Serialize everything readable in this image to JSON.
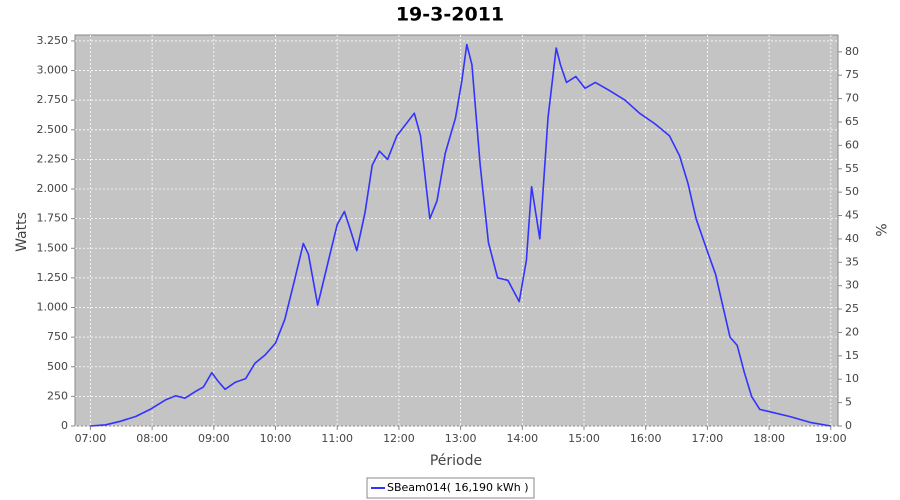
{
  "chart_data": {
    "type": "line",
    "title": "19-3-2011",
    "xlabel": "Période",
    "ylabel": "Watts",
    "y2label": "%",
    "x": [
      "07:00",
      "07:15",
      "07:29",
      "07:44",
      "07:58",
      "08:13",
      "08:23",
      "08:32",
      "08:42",
      "08:50",
      "08:58",
      "09:04",
      "09:11",
      "09:21",
      "09:31",
      "09:40",
      "09:50",
      "10:00",
      "10:09",
      "10:19",
      "10:27",
      "10:32",
      "10:41",
      "10:51",
      "11:00",
      "11:07",
      "11:13",
      "11:19",
      "11:27",
      "11:34",
      "11:41",
      "11:49",
      "11:58",
      "12:07",
      "12:15",
      "12:21",
      "12:30",
      "12:37",
      "12:45",
      "12:55",
      "13:01",
      "13:06",
      "13:11",
      "13:19",
      "13:27",
      "13:36",
      "13:46",
      "13:57",
      "14:04",
      "14:09",
      "14:17",
      "14:25",
      "14:33",
      "14:37",
      "14:43",
      "14:52",
      "15:01",
      "15:11",
      "15:25",
      "15:40",
      "15:54",
      "16:09",
      "16:23",
      "16:33",
      "16:41",
      "16:49",
      "17:01",
      "17:08",
      "17:14",
      "17:22",
      "17:29",
      "17:36",
      "17:43",
      "17:51",
      "18:01",
      "18:20",
      "18:40",
      "19:00"
    ],
    "series": [
      {
        "name": "SBeam014( 16,190 kWh )",
        "color": "#3333ff",
        "values": [
          0,
          10,
          40,
          80,
          140,
          220,
          255,
          235,
          290,
          330,
          450,
          380,
          310,
          370,
          400,
          530,
          600,
          700,
          900,
          1250,
          1540,
          1450,
          1020,
          1380,
          1700,
          1810,
          1650,
          1480,
          1800,
          2200,
          2320,
          2250,
          2450,
          2550,
          2640,
          2450,
          1750,
          1900,
          2300,
          2600,
          2900,
          3220,
          3050,
          2200,
          1550,
          1250,
          1230,
          1050,
          1400,
          2020,
          1580,
          2600,
          3190,
          3050,
          2900,
          2950,
          2850,
          2900,
          2830,
          2750,
          2640,
          2550,
          2450,
          2280,
          2050,
          1750,
          1450,
          1280,
          1050,
          750,
          680,
          450,
          250,
          140,
          120,
          80,
          30,
          0
        ]
      }
    ],
    "xlim": [
      "06:45",
      "19:07"
    ],
    "xticks": [
      "07:00",
      "08:00",
      "09:00",
      "10:00",
      "11:00",
      "12:00",
      "13:00",
      "14:00",
      "15:00",
      "16:00",
      "17:00",
      "18:00",
      "19:00"
    ],
    "ylim": [
      0,
      3300
    ],
    "yticks": [
      0,
      250,
      500,
      750,
      {
        "value": 1000,
        "label": "1.000"
      },
      {
        "value": 1250,
        "label": "1.250"
      },
      {
        "value": 1500,
        "label": "1.500"
      },
      {
        "value": 1750,
        "label": "1.750"
      },
      {
        "value": 2000,
        "label": "2.000"
      },
      {
        "value": 2250,
        "label": "2.250"
      },
      {
        "value": 2500,
        "label": "2.500"
      },
      {
        "value": 2750,
        "label": "2.750"
      },
      {
        "value": 3000,
        "label": "3.000"
      },
      {
        "value": 3250,
        "label": "3.250"
      }
    ],
    "y2lim": [
      0,
      83.6
    ],
    "y2ticks": [
      0,
      5,
      10,
      15,
      20,
      25,
      30,
      35,
      40,
      45,
      50,
      55,
      60,
      65,
      70,
      75,
      80
    ],
    "grid": true,
    "legend": "bottom"
  }
}
